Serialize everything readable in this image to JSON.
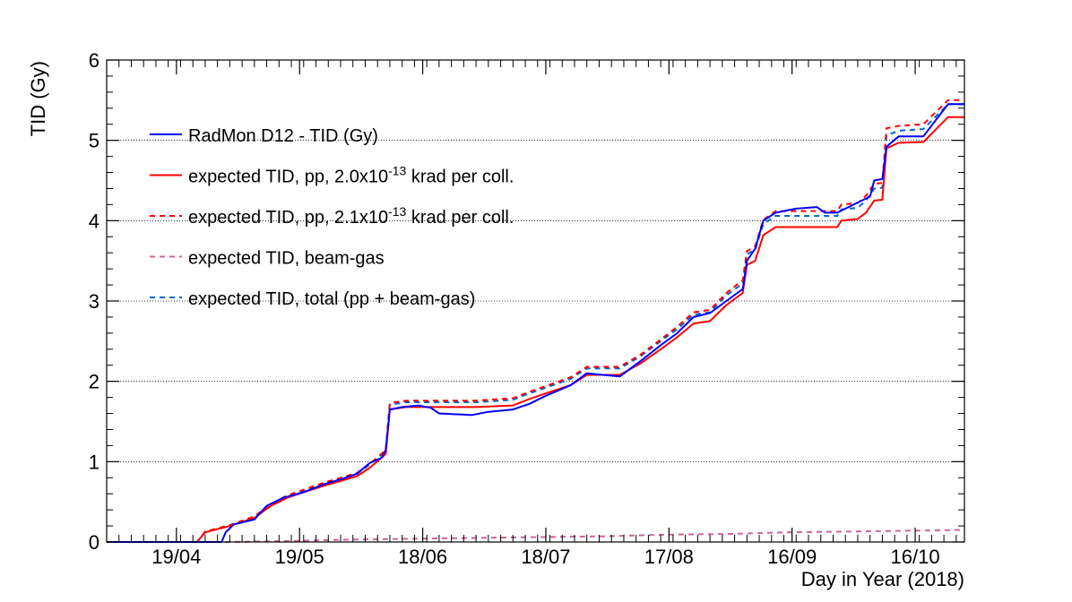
{
  "chart_data": {
    "type": "line",
    "title": "",
    "xlabel": "Day in Year (2018)",
    "ylabel": "TID (Gy)",
    "x_range": [
      "2018-04-02",
      "2018-10-28"
    ],
    "ylim": [
      0,
      6
    ],
    "y_ticks": [
      0,
      1,
      2,
      3,
      4,
      5,
      6
    ],
    "x_ticks": [
      {
        "date": "2018-04-19",
        "label": "19/04"
      },
      {
        "date": "2018-05-19",
        "label": "19/05"
      },
      {
        "date": "2018-06-18",
        "label": "18/06"
      },
      {
        "date": "2018-07-18",
        "label": "18/07"
      },
      {
        "date": "2018-08-17",
        "label": "17/08"
      },
      {
        "date": "2018-09-16",
        "label": "16/09"
      },
      {
        "date": "2018-10-16",
        "label": "16/10"
      }
    ],
    "grid": "horizontal dotted",
    "legend_placement": "top-left",
    "series": [
      {
        "name": "RadMon D12 - TID (Gy)",
        "label_main": "RadMon D12 - TID (Gy)",
        "label_sup": "",
        "label_post": "",
        "color": "#0000ff",
        "dash": "solid",
        "points": [
          [
            "2018-04-02",
            0
          ],
          [
            "2018-04-30",
            0
          ],
          [
            "2018-05-01",
            0.12
          ],
          [
            "2018-05-03",
            0.22
          ],
          [
            "2018-05-08",
            0.28
          ],
          [
            "2018-05-11",
            0.45
          ],
          [
            "2018-05-15",
            0.55
          ],
          [
            "2018-05-20",
            0.62
          ],
          [
            "2018-05-25",
            0.72
          ],
          [
            "2018-05-29",
            0.78
          ],
          [
            "2018-06-02",
            0.85
          ],
          [
            "2018-06-05",
            0.98
          ],
          [
            "2018-06-08",
            1.05
          ],
          [
            "2018-06-09",
            1.15
          ],
          [
            "2018-06-10",
            1.65
          ],
          [
            "2018-06-13",
            1.68
          ],
          [
            "2018-06-17",
            1.7
          ],
          [
            "2018-06-20",
            1.67
          ],
          [
            "2018-06-22",
            1.6
          ],
          [
            "2018-06-30",
            1.58
          ],
          [
            "2018-07-04",
            1.62
          ],
          [
            "2018-07-10",
            1.65
          ],
          [
            "2018-07-14",
            1.72
          ],
          [
            "2018-07-18",
            1.82
          ],
          [
            "2018-07-24",
            1.95
          ],
          [
            "2018-07-28",
            2.1
          ],
          [
            "2018-08-01",
            2.08
          ],
          [
            "2018-08-05",
            2.06
          ],
          [
            "2018-08-10",
            2.25
          ],
          [
            "2018-08-15",
            2.45
          ],
          [
            "2018-08-19",
            2.6
          ],
          [
            "2018-08-23",
            2.8
          ],
          [
            "2018-08-27",
            2.85
          ],
          [
            "2018-08-31",
            3.0
          ],
          [
            "2018-09-04",
            3.15
          ],
          [
            "2018-09-05",
            3.5
          ],
          [
            "2018-09-07",
            3.65
          ],
          [
            "2018-09-09",
            4.0
          ],
          [
            "2018-09-12",
            4.1
          ],
          [
            "2018-09-17",
            4.15
          ],
          [
            "2018-09-22",
            4.17
          ],
          [
            "2018-09-24",
            4.1
          ],
          [
            "2018-09-27",
            4.1
          ],
          [
            "2018-10-01",
            4.2
          ],
          [
            "2018-10-05",
            4.3
          ],
          [
            "2018-10-06",
            4.5
          ],
          [
            "2018-10-08",
            4.52
          ],
          [
            "2018-10-09",
            4.92
          ],
          [
            "2018-10-12",
            5.05
          ],
          [
            "2018-10-18",
            5.05
          ],
          [
            "2018-10-24",
            5.45
          ],
          [
            "2018-10-28",
            5.45
          ]
        ]
      },
      {
        "name": "expected TID, pp, 2.0x10-13 krad per coll.",
        "label_main": "expected TID, pp, 2.0x10",
        "label_sup": "-13",
        "label_post": " krad per coll.",
        "color": "#ff0000",
        "dash": "solid",
        "points": [
          [
            "2018-04-02",
            0
          ],
          [
            "2018-04-24",
            0
          ],
          [
            "2018-04-26",
            0.12
          ],
          [
            "2018-05-02",
            0.2
          ],
          [
            "2018-05-08",
            0.3
          ],
          [
            "2018-05-12",
            0.45
          ],
          [
            "2018-05-16",
            0.55
          ],
          [
            "2018-05-20",
            0.62
          ],
          [
            "2018-05-25",
            0.7
          ],
          [
            "2018-05-29",
            0.76
          ],
          [
            "2018-06-02",
            0.82
          ],
          [
            "2018-06-05",
            0.92
          ],
          [
            "2018-06-08",
            1.05
          ],
          [
            "2018-06-09",
            1.1
          ],
          [
            "2018-06-10",
            1.65
          ],
          [
            "2018-06-14",
            1.68
          ],
          [
            "2018-06-22",
            1.68
          ],
          [
            "2018-07-01",
            1.68
          ],
          [
            "2018-07-10",
            1.7
          ],
          [
            "2018-07-14",
            1.78
          ],
          [
            "2018-07-18",
            1.85
          ],
          [
            "2018-07-24",
            1.95
          ],
          [
            "2018-07-28",
            2.08
          ],
          [
            "2018-08-01",
            2.08
          ],
          [
            "2018-08-05",
            2.08
          ],
          [
            "2018-08-10",
            2.22
          ],
          [
            "2018-08-15",
            2.4
          ],
          [
            "2018-08-19",
            2.55
          ],
          [
            "2018-08-23",
            2.72
          ],
          [
            "2018-08-27",
            2.75
          ],
          [
            "2018-08-31",
            2.95
          ],
          [
            "2018-09-04",
            3.1
          ],
          [
            "2018-09-05",
            3.45
          ],
          [
            "2018-09-07",
            3.5
          ],
          [
            "2018-09-09",
            3.82
          ],
          [
            "2018-09-12",
            3.92
          ],
          [
            "2018-09-27",
            3.92
          ],
          [
            "2018-09-28",
            4.0
          ],
          [
            "2018-10-02",
            4.02
          ],
          [
            "2018-10-04",
            4.1
          ],
          [
            "2018-10-06",
            4.25
          ],
          [
            "2018-10-08",
            4.26
          ],
          [
            "2018-10-09",
            4.9
          ],
          [
            "2018-10-12",
            4.97
          ],
          [
            "2018-10-18",
            4.98
          ],
          [
            "2018-10-24",
            5.29
          ],
          [
            "2018-10-28",
            5.29
          ]
        ]
      },
      {
        "name": "expected TID, pp, 2.1x10-13 krad per coll.",
        "label_main": "expected TID, pp, 2.1x10",
        "label_sup": "-13",
        "label_post": " krad per coll.",
        "color": "#ff0000",
        "dash": "dashed",
        "points": [
          [
            "2018-04-02",
            0
          ],
          [
            "2018-04-24",
            0
          ],
          [
            "2018-04-26",
            0.13
          ],
          [
            "2018-05-02",
            0.21
          ],
          [
            "2018-05-08",
            0.32
          ],
          [
            "2018-05-12",
            0.47
          ],
          [
            "2018-05-16",
            0.58
          ],
          [
            "2018-05-20",
            0.65
          ],
          [
            "2018-05-25",
            0.74
          ],
          [
            "2018-05-29",
            0.8
          ],
          [
            "2018-06-02",
            0.86
          ],
          [
            "2018-06-05",
            0.97
          ],
          [
            "2018-06-08",
            1.1
          ],
          [
            "2018-06-09",
            1.16
          ],
          [
            "2018-06-10",
            1.73
          ],
          [
            "2018-06-14",
            1.76
          ],
          [
            "2018-06-22",
            1.76
          ],
          [
            "2018-07-01",
            1.76
          ],
          [
            "2018-07-10",
            1.79
          ],
          [
            "2018-07-14",
            1.87
          ],
          [
            "2018-07-18",
            1.94
          ],
          [
            "2018-07-24",
            2.05
          ],
          [
            "2018-07-28",
            2.18
          ],
          [
            "2018-08-01",
            2.18
          ],
          [
            "2018-08-05",
            2.18
          ],
          [
            "2018-08-10",
            2.33
          ],
          [
            "2018-08-15",
            2.52
          ],
          [
            "2018-08-19",
            2.68
          ],
          [
            "2018-08-23",
            2.86
          ],
          [
            "2018-08-27",
            2.89
          ],
          [
            "2018-08-31",
            3.1
          ],
          [
            "2018-09-04",
            3.26
          ],
          [
            "2018-09-05",
            3.62
          ],
          [
            "2018-09-07",
            3.68
          ],
          [
            "2018-09-09",
            4.01
          ],
          [
            "2018-09-12",
            4.12
          ],
          [
            "2018-09-27",
            4.12
          ],
          [
            "2018-09-28",
            4.2
          ],
          [
            "2018-10-02",
            4.22
          ],
          [
            "2018-10-04",
            4.31
          ],
          [
            "2018-10-06",
            4.46
          ],
          [
            "2018-10-08",
            4.47
          ],
          [
            "2018-10-09",
            5.15
          ],
          [
            "2018-10-12",
            5.18
          ],
          [
            "2018-10-18",
            5.2
          ],
          [
            "2018-10-24",
            5.5
          ],
          [
            "2018-10-28",
            5.5
          ]
        ]
      },
      {
        "name": "expected TID, beam-gas",
        "label_main": "expected TID, beam-gas",
        "label_sup": "",
        "label_post": "",
        "color": "#cc6699",
        "dash": "dashed",
        "points": [
          [
            "2018-04-02",
            0
          ],
          [
            "2018-05-01",
            0
          ],
          [
            "2018-05-15",
            0.01
          ],
          [
            "2018-06-01",
            0.03
          ],
          [
            "2018-06-15",
            0.04
          ],
          [
            "2018-07-01",
            0.05
          ],
          [
            "2018-07-15",
            0.06
          ],
          [
            "2018-08-01",
            0.07
          ],
          [
            "2018-08-15",
            0.09
          ],
          [
            "2018-09-01",
            0.1
          ],
          [
            "2018-09-15",
            0.12
          ],
          [
            "2018-10-01",
            0.13
          ],
          [
            "2018-10-15",
            0.14
          ],
          [
            "2018-10-28",
            0.15
          ]
        ]
      },
      {
        "name": "expected TID, total (pp + beam-gas)",
        "label_main": "expected TID, total (pp + beam-gas)",
        "label_sup": "",
        "label_post": "",
        "color": "#0066cc",
        "dash": "dashed",
        "points": [
          [
            "2018-04-02",
            0
          ],
          [
            "2018-04-24",
            0
          ],
          [
            "2018-04-26",
            0.12
          ],
          [
            "2018-05-02",
            0.2
          ],
          [
            "2018-05-08",
            0.3
          ],
          [
            "2018-05-12",
            0.45
          ],
          [
            "2018-05-16",
            0.56
          ],
          [
            "2018-05-20",
            0.63
          ],
          [
            "2018-05-25",
            0.72
          ],
          [
            "2018-05-29",
            0.79
          ],
          [
            "2018-06-02",
            0.85
          ],
          [
            "2018-06-05",
            0.96
          ],
          [
            "2018-06-08",
            1.09
          ],
          [
            "2018-06-09",
            1.14
          ],
          [
            "2018-06-10",
            1.71
          ],
          [
            "2018-06-14",
            1.74
          ],
          [
            "2018-06-22",
            1.74
          ],
          [
            "2018-07-01",
            1.74
          ],
          [
            "2018-07-10",
            1.77
          ],
          [
            "2018-07-14",
            1.85
          ],
          [
            "2018-07-18",
            1.92
          ],
          [
            "2018-07-24",
            2.03
          ],
          [
            "2018-07-28",
            2.16
          ],
          [
            "2018-08-01",
            2.16
          ],
          [
            "2018-08-05",
            2.16
          ],
          [
            "2018-08-10",
            2.31
          ],
          [
            "2018-08-15",
            2.5
          ],
          [
            "2018-08-19",
            2.65
          ],
          [
            "2018-08-23",
            2.83
          ],
          [
            "2018-08-27",
            2.86
          ],
          [
            "2018-08-31",
            3.07
          ],
          [
            "2018-09-04",
            3.22
          ],
          [
            "2018-09-05",
            3.58
          ],
          [
            "2018-09-07",
            3.64
          ],
          [
            "2018-09-09",
            3.96
          ],
          [
            "2018-09-12",
            4.06
          ],
          [
            "2018-09-27",
            4.06
          ],
          [
            "2018-09-28",
            4.14
          ],
          [
            "2018-10-02",
            4.16
          ],
          [
            "2018-10-04",
            4.25
          ],
          [
            "2018-10-06",
            4.4
          ],
          [
            "2018-10-08",
            4.41
          ],
          [
            "2018-10-09",
            5.06
          ],
          [
            "2018-10-12",
            5.12
          ],
          [
            "2018-10-18",
            5.14
          ],
          [
            "2018-10-24",
            5.45
          ],
          [
            "2018-10-28",
            5.45
          ]
        ]
      }
    ]
  }
}
